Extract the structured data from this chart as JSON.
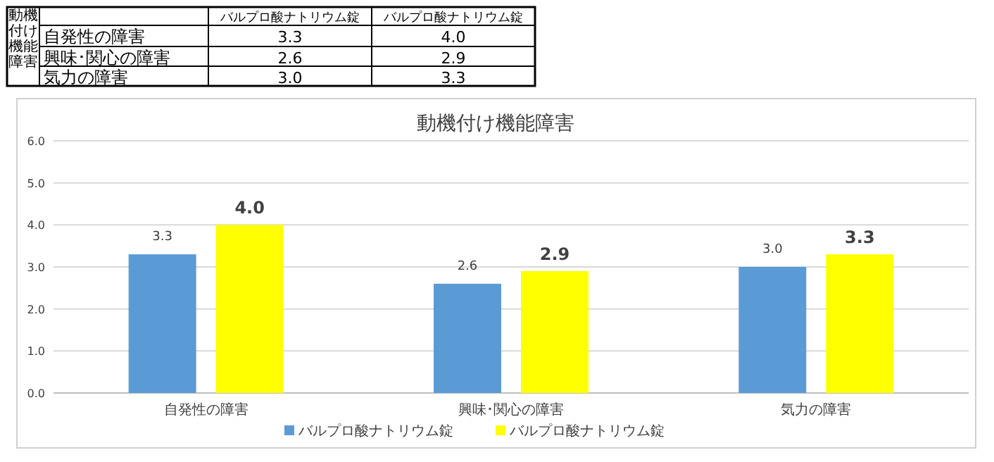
{
  "chart_data": {
    "type": "bar",
    "title": "動機付け機能障害",
    "categories": [
      "自発性の障害",
      "興味･関心の障害",
      "気力の障害"
    ],
    "series": [
      {
        "name": "バルプロ酸ナトリウム錠",
        "color": "#5b9bd5",
        "values": [
          3.3,
          2.6,
          3.0
        ],
        "value_labels": [
          "3.3",
          "2.6",
          "3.0"
        ]
      },
      {
        "name": "バルプロ酸ナトリウム錠",
        "color": "#ffff00",
        "values": [
          4.0,
          2.9,
          3.3
        ],
        "value_labels": [
          "4.0",
          "2.9",
          "3.3"
        ]
      }
    ],
    "ylim": [
      0,
      6
    ],
    "yticks": [
      {
        "value": 0,
        "label": "0.0"
      },
      {
        "value": 1,
        "label": "1.0"
      },
      {
        "value": 2,
        "label": "2.0"
      },
      {
        "value": 3,
        "label": "3.0"
      },
      {
        "value": 4,
        "label": "4.0"
      },
      {
        "value": 5,
        "label": "5.0"
      },
      {
        "value": 6,
        "label": "6.0"
      }
    ],
    "grid": "y",
    "legend": "bottom",
    "annotations": [
      "動機付け機能障害"
    ]
  }
}
